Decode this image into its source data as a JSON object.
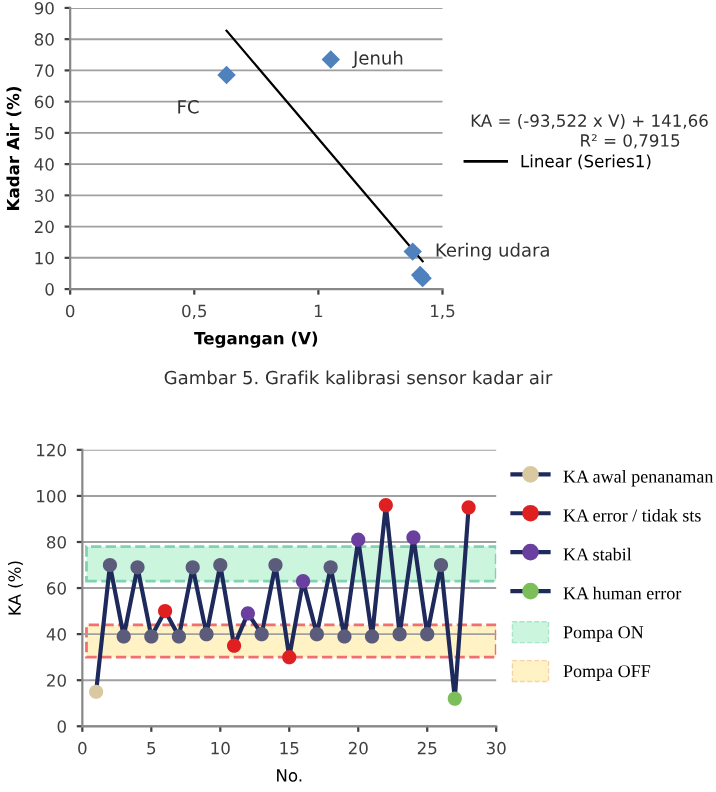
{
  "chart_data": [
    {
      "type": "scatter",
      "xlabel": "Tegangan (V)",
      "ylabel": "Kadar Air (%)",
      "xlim": [
        0,
        1.5
      ],
      "ylim": [
        0,
        90
      ],
      "xticks": [
        0,
        {
          "value": 0.5,
          "label": "0,5"
        },
        1,
        {
          "value": 1.5,
          "label": "1,5"
        }
      ],
      "yticks": [
        0,
        10,
        20,
        30,
        40,
        50,
        60,
        70,
        80,
        90
      ],
      "grid": "y",
      "legend": "right",
      "marker": "diamond",
      "series": [
        {
          "color": "#4f81bd",
          "x": [
            0.63,
            1.05,
            1.38,
            1.41,
            1.42
          ],
          "values": [
            68.5,
            73.5,
            12,
            4.5,
            3.5
          ]
        },
        {
          "type": "line",
          "name": "Linear (Series1)",
          "color": "#000000",
          "x": [
            0.63,
            1.42
          ],
          "values": [
            82.7,
            8.9
          ],
          "marker": "none"
        }
      ],
      "annotations": [
        {
          "text": "FC",
          "x": 0.63,
          "y": 68.5
        },
        {
          "text": "Jenuh",
          "x": 1.05,
          "y": 73.5
        },
        {
          "text": "Kering udara",
          "x": 1.38,
          "y": 12
        },
        "KA = (-93,522 x V) + 141,66",
        "R² = 0,7915",
        "Gambar 5. Grafik kalibrasi sensor kadar air"
      ]
    },
    {
      "type": "line",
      "xlabel": "No.",
      "ylabel": "KA (%)",
      "xlim": [
        0,
        30
      ],
      "ylim": [
        0,
        120
      ],
      "xticks": [
        0,
        5,
        10,
        15,
        20,
        25,
        30
      ],
      "yticks": [
        0,
        20,
        40,
        60,
        80,
        100,
        120
      ],
      "grid": "y",
      "legend": "right",
      "marker": "circle",
      "line_style": "solid",
      "series": [
        {
          "color": "#1f2a5c",
          "x": [
            1,
            2,
            3,
            4,
            5,
            6,
            7,
            8,
            9,
            10,
            11,
            12,
            13,
            14,
            15,
            16,
            17,
            18,
            19,
            20,
            21,
            22,
            23,
            24,
            25,
            26,
            27,
            28
          ],
          "values": [
            15,
            70,
            39,
            69,
            39,
            50,
            39,
            69,
            40,
            70,
            35,
            49,
            40,
            70,
            30,
            63,
            40,
            69,
            39,
            81,
            39,
            96,
            40,
            82,
            40,
            70,
            12,
            95
          ],
          "marker": "none"
        },
        {
          "type": "scatter",
          "color": "#5b5b7b",
          "x": [
            2,
            3,
            4,
            5,
            7,
            8,
            9,
            10,
            13,
            14,
            17,
            18,
            19,
            21,
            23,
            25,
            26
          ],
          "values": [
            70,
            39,
            69,
            39,
            39,
            69,
            40,
            70,
            40,
            70,
            40,
            69,
            39,
            39,
            40,
            40,
            70
          ]
        },
        {
          "type": "scatter",
          "name": "KA awal penanaman",
          "color": "#d9c8a0",
          "x": [
            1
          ],
          "values": [
            15
          ]
        },
        {
          "type": "scatter",
          "name": "KA error / tidak sts",
          "color": "#e02020",
          "x": [
            6,
            11,
            15,
            22,
            28
          ],
          "values": [
            50,
            35,
            30,
            96,
            95
          ]
        },
        {
          "type": "scatter",
          "name": "KA stabil",
          "color": "#6a3fa0",
          "x": [
            12,
            16,
            20,
            24
          ],
          "values": [
            49,
            63,
            81,
            82
          ]
        },
        {
          "type": "scatter",
          "name": "KA human error",
          "color": "#7cbf5a",
          "x": [
            27
          ],
          "values": [
            12
          ]
        }
      ],
      "bands": [
        {
          "axis": "y",
          "from": 63,
          "to": 78,
          "label": "Pompa ON",
          "color": "#ccf5dd"
        },
        {
          "axis": "y",
          "from": 30,
          "to": 44,
          "label": "Pompa OFF",
          "color": "#fff2c4"
        }
      ]
    }
  ]
}
